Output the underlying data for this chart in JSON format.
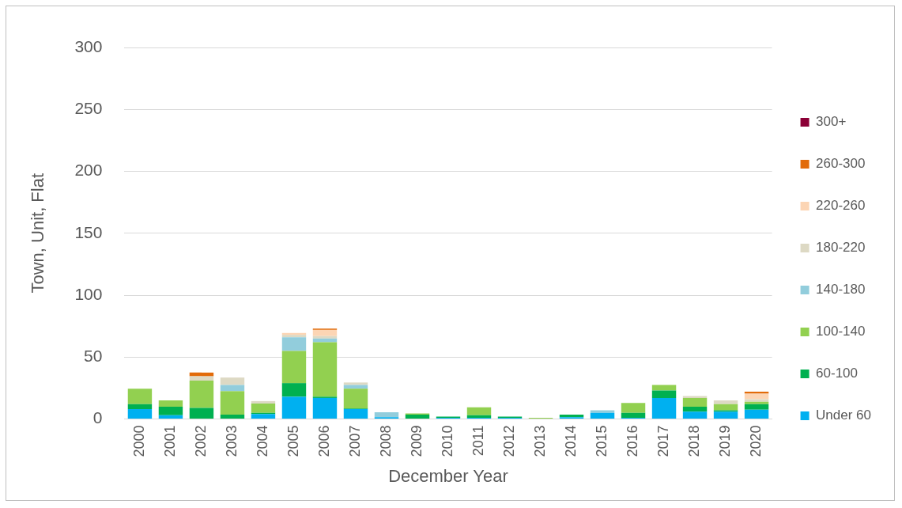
{
  "chart_data": {
    "type": "bar",
    "stacked": true,
    "xlabel": "December Year",
    "ylabel": "Town, Unit, Flat",
    "categories": [
      "2000",
      "2001",
      "2002",
      "2003",
      "2004",
      "2005",
      "2006",
      "2007",
      "2008",
      "2009",
      "2010",
      "2011",
      "2012",
      "2013",
      "2014",
      "2015",
      "2016",
      "2017",
      "2018",
      "2019",
      "2020"
    ],
    "series": [
      {
        "name": "Under 60",
        "color": "#00b0f0",
        "values": [
          8,
          3,
          0,
          0,
          4,
          18,
          17,
          8,
          1.5,
          0,
          1,
          1,
          1,
          0,
          1.5,
          5,
          1,
          17,
          6,
          6,
          7.5
        ]
      },
      {
        "name": "60-100",
        "color": "#00b050",
        "values": [
          4,
          7,
          9,
          3.5,
          1,
          11,
          1,
          0.5,
          0,
          3.5,
          1,
          2,
          1,
          0,
          2,
          0,
          4,
          6,
          4,
          1,
          4.5
        ]
      },
      {
        "name": "100-140",
        "color": "#92d050",
        "values": [
          12.5,
          5,
          22,
          19,
          7.5,
          26,
          44,
          16,
          0,
          1,
          0,
          6.5,
          0,
          1,
          0,
          0,
          8,
          4.5,
          7,
          5,
          2
        ]
      },
      {
        "name": "140-180",
        "color": "#92cddc",
        "values": [
          0,
          0,
          0,
          5,
          0,
          11,
          3,
          3,
          4,
          0,
          0,
          0,
          0,
          0,
          0,
          2,
          0,
          0,
          0,
          0,
          0
        ]
      },
      {
        "name": "180-220",
        "color": "#ddd9c4",
        "values": [
          0,
          0,
          3.5,
          6,
          2,
          2,
          2,
          2,
          0,
          0,
          0,
          0,
          0,
          0,
          0,
          0,
          0,
          0,
          1.5,
          3,
          2
        ]
      },
      {
        "name": "220-260",
        "color": "#fcd5b4",
        "values": [
          0,
          0,
          0,
          0,
          0,
          1.5,
          5,
          0,
          0,
          0,
          0,
          0,
          0,
          0,
          0,
          0,
          0,
          0,
          0,
          0,
          4.5
        ]
      },
      {
        "name": "260-300",
        "color": "#e26b0a",
        "values": [
          0,
          0,
          3,
          0,
          0,
          0,
          1,
          0,
          0,
          0,
          0,
          0,
          0,
          0,
          0,
          0,
          0,
          0,
          0,
          0,
          1.5
        ]
      },
      {
        "name": "300+",
        "color": "#8b0036",
        "values": [
          0,
          0,
          0,
          0,
          0,
          0,
          0,
          0,
          0,
          0,
          0,
          0,
          0,
          0,
          0,
          0,
          0,
          0,
          0,
          0,
          0
        ]
      }
    ],
    "ylim": [
      0,
      300
    ],
    "yticks": [
      0,
      50,
      100,
      150,
      200,
      250,
      300
    ],
    "grid": "y",
    "legend": "right"
  }
}
